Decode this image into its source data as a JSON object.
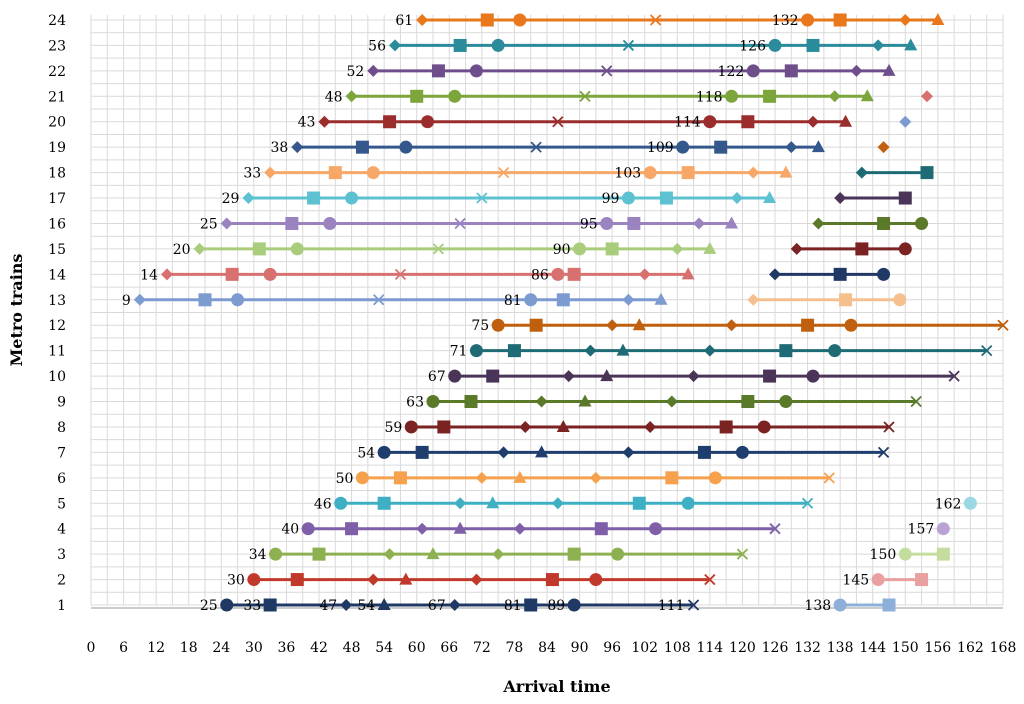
{
  "chart_data": {
    "type": "line",
    "xlabel": "Arrival time",
    "ylabel": "Metro trains",
    "xlim": [
      0,
      168
    ],
    "ylim": [
      0,
      24
    ],
    "x_ticks": [
      "0",
      "6",
      "12",
      "18",
      "24",
      "30",
      "36",
      "42",
      "48",
      "54",
      "60",
      "66",
      "72",
      "78",
      "84",
      "90",
      "96",
      "102",
      "108",
      "114",
      "120",
      "126",
      "132",
      "138",
      "144",
      "150",
      "156",
      "162",
      "168"
    ],
    "y_ticks": [
      "1",
      "2",
      "3",
      "4",
      "5",
      "6",
      "7",
      "8",
      "9",
      "10",
      "11",
      "12",
      "13",
      "14",
      "15",
      "16",
      "17",
      "18",
      "19",
      "20",
      "21",
      "22",
      "23",
      "24"
    ],
    "grid": true,
    "legend": "none",
    "series": [
      {
        "train": 1,
        "color": "#1f3864",
        "x": [
          25,
          33,
          47,
          54,
          67,
          81,
          89,
          111
        ],
        "markers": [
          "circle",
          "square",
          "diamond",
          "triangle",
          "diamond",
          "square",
          "circle",
          "x"
        ],
        "labels": [
          "25",
          "33",
          "47",
          "54",
          "67",
          "81",
          "89",
          "111"
        ]
      },
      {
        "train": 2,
        "color": "#c0392b",
        "x": [
          30,
          38,
          52,
          58,
          71,
          85,
          93,
          114
        ],
        "markers": [
          "circle",
          "square",
          "diamond",
          "triangle",
          "diamond",
          "square",
          "circle",
          "x"
        ],
        "labels": [
          "30",
          "",
          "",
          "",
          "",
          "",
          "",
          ""
        ]
      },
      {
        "train": 3,
        "color": "#8db050",
        "x": [
          34,
          42,
          55,
          63,
          75,
          89,
          97,
          120
        ],
        "markers": [
          "circle",
          "square",
          "diamond",
          "triangle",
          "diamond",
          "square",
          "circle",
          "x"
        ],
        "labels": [
          "34",
          "",
          "",
          "",
          "",
          "",
          "",
          ""
        ]
      },
      {
        "train": 4,
        "color": "#7f5fa8",
        "x": [
          40,
          48,
          61,
          68,
          79,
          94,
          104,
          126
        ],
        "markers": [
          "circle",
          "square",
          "diamond",
          "triangle",
          "diamond",
          "square",
          "circle",
          "x"
        ],
        "labels": [
          "40",
          "",
          "",
          "",
          "",
          "",
          "",
          ""
        ]
      },
      {
        "train": 5,
        "color": "#3fb0c4",
        "x": [
          46,
          54,
          68,
          74,
          86,
          101,
          110,
          132
        ],
        "markers": [
          "circle",
          "square",
          "diamond",
          "triangle",
          "diamond",
          "square",
          "circle",
          "x"
        ],
        "labels": [
          "46",
          "",
          "",
          "",
          "",
          "",
          "",
          ""
        ]
      },
      {
        "train": 6,
        "color": "#f5a14e",
        "x": [
          50,
          57,
          72,
          79,
          93,
          107,
          115,
          136
        ],
        "markers": [
          "circle",
          "square",
          "diamond",
          "triangle",
          "diamond",
          "square",
          "circle",
          "x"
        ],
        "labels": [
          "50",
          "",
          "",
          "",
          "",
          "",
          "",
          ""
        ]
      },
      {
        "train": 7,
        "color": "#1f3e6e",
        "x": [
          54,
          61,
          76,
          83,
          99,
          113,
          120,
          146
        ],
        "markers": [
          "circle",
          "square",
          "diamond",
          "triangle",
          "diamond",
          "square",
          "circle",
          "x"
        ],
        "labels": [
          "54",
          "",
          "",
          "",
          "",
          "",
          "",
          ""
        ]
      },
      {
        "train": 8,
        "color": "#7b2222",
        "x": [
          59,
          65,
          80,
          87,
          103,
          117,
          124,
          147
        ],
        "markers": [
          "circle",
          "square",
          "diamond",
          "triangle",
          "diamond",
          "square",
          "circle",
          "x"
        ],
        "labels": [
          "59",
          "",
          "",
          "",
          "",
          "",
          "",
          ""
        ]
      },
      {
        "train": 9,
        "color": "#5a7a2a",
        "x": [
          63,
          70,
          83,
          91,
          107,
          121,
          128,
          152
        ],
        "markers": [
          "circle",
          "square",
          "diamond",
          "triangle",
          "diamond",
          "square",
          "circle",
          "x"
        ],
        "labels": [
          "63",
          "",
          "",
          "",
          "",
          "",
          "",
          ""
        ]
      },
      {
        "train": 10,
        "color": "#4a3559",
        "x": [
          67,
          74,
          88,
          95,
          111,
          125,
          133,
          159
        ],
        "markers": [
          "circle",
          "square",
          "diamond",
          "triangle",
          "diamond",
          "square",
          "circle",
          "x"
        ],
        "labels": [
          "67",
          "",
          "",
          "",
          "",
          "",
          "",
          ""
        ]
      },
      {
        "train": 11,
        "color": "#1e6b75",
        "x": [
          71,
          78,
          92,
          98,
          114,
          128,
          137,
          165
        ],
        "markers": [
          "circle",
          "square",
          "diamond",
          "triangle",
          "diamond",
          "square",
          "circle",
          "x"
        ],
        "labels": [
          "71",
          "",
          "",
          "",
          "",
          "",
          "",
          ""
        ]
      },
      {
        "train": 12,
        "color": "#c0600f",
        "x": [
          75,
          82,
          96,
          101,
          118,
          132,
          140,
          168
        ],
        "markers": [
          "circle",
          "square",
          "diamond",
          "triangle",
          "diamond",
          "square",
          "circle",
          "x"
        ],
        "labels": [
          "75",
          "",
          "",
          "",
          "",
          "",
          "",
          ""
        ]
      },
      {
        "train": 13,
        "color": "#7c9bd1",
        "x": [
          9,
          21,
          27,
          53,
          81,
          87,
          99,
          105
        ],
        "markers": [
          "diamond",
          "square",
          "circle",
          "x",
          "circle",
          "square",
          "diamond",
          "triangle"
        ],
        "labels": [
          "9",
          "",
          "",
          "",
          "81",
          "",
          "",
          ""
        ]
      },
      {
        "train": 13,
        "color": "#f5c08e",
        "x": [
          122,
          139,
          149
        ],
        "markers": [
          "diamond",
          "square",
          "circle"
        ],
        "labels": [
          "",
          "",
          ""
        ]
      },
      {
        "train": 14,
        "color": "#d97070",
        "x": [
          14,
          26,
          33,
          57,
          86,
          89,
          102,
          110
        ],
        "markers": [
          "diamond",
          "square",
          "circle",
          "x",
          "circle",
          "square",
          "diamond",
          "triangle"
        ],
        "labels": [
          "14",
          "",
          "",
          "",
          "86",
          "",
          "",
          ""
        ]
      },
      {
        "train": 14,
        "color": "#1f3864",
        "x": [
          126,
          138,
          146
        ],
        "markers": [
          "diamond",
          "square",
          "circle"
        ],
        "labels": [
          "",
          "",
          ""
        ]
      },
      {
        "train": 15,
        "color": "#a9cd7d",
        "x": [
          20,
          31,
          38,
          64,
          90,
          96,
          108,
          114
        ],
        "markers": [
          "diamond",
          "square",
          "circle",
          "x",
          "circle",
          "square",
          "diamond",
          "triangle"
        ],
        "labels": [
          "20",
          "",
          "",
          "",
          "90",
          "",
          "",
          ""
        ]
      },
      {
        "train": 15,
        "color": "#7b2222",
        "x": [
          130,
          142,
          150
        ],
        "markers": [
          "diamond",
          "square",
          "circle"
        ],
        "labels": [
          "",
          "",
          ""
        ]
      },
      {
        "train": 16,
        "color": "#9b83c0",
        "x": [
          25,
          37,
          44,
          68,
          95,
          100,
          112,
          118
        ],
        "markers": [
          "diamond",
          "square",
          "circle",
          "x",
          "circle",
          "square",
          "diamond",
          "triangle"
        ],
        "labels": [
          "25",
          "",
          "",
          "",
          "95",
          "",
          "",
          ""
        ]
      },
      {
        "train": 16,
        "color": "#5a7a2a",
        "x": [
          134,
          146,
          153
        ],
        "markers": [
          "diamond",
          "square",
          "circle"
        ],
        "labels": [
          "",
          "",
          ""
        ]
      },
      {
        "train": 17,
        "color": "#5cc1d1",
        "x": [
          29,
          41,
          48,
          72,
          99,
          106,
          119,
          125
        ],
        "markers": [
          "diamond",
          "square",
          "circle",
          "x",
          "circle",
          "square",
          "diamond",
          "triangle"
        ],
        "labels": [
          "29",
          "",
          "",
          "",
          "99",
          "",
          "",
          ""
        ]
      },
      {
        "train": 17,
        "color": "#4a3559",
        "x": [
          138,
          150
        ],
        "markers": [
          "diamond",
          "square"
        ],
        "labels": [
          "",
          ""
        ]
      },
      {
        "train": 18,
        "color": "#f7a868",
        "x": [
          33,
          45,
          52,
          76,
          103,
          110,
          122,
          128
        ],
        "markers": [
          "diamond",
          "square",
          "circle",
          "x",
          "circle",
          "square",
          "diamond",
          "triangle"
        ],
        "labels": [
          "33",
          "",
          "",
          "",
          "103",
          "",
          "",
          ""
        ]
      },
      {
        "train": 18,
        "color": "#1e6b75",
        "x": [
          142,
          154
        ],
        "markers": [
          "diamond",
          "square"
        ],
        "labels": [
          "",
          ""
        ]
      },
      {
        "train": 19,
        "color": "#34578c",
        "x": [
          38,
          50,
          58,
          82,
          109,
          116,
          129,
          134
        ],
        "markers": [
          "diamond",
          "square",
          "circle",
          "x",
          "circle",
          "square",
          "diamond",
          "triangle"
        ],
        "labels": [
          "38",
          "",
          "",
          "",
          "109",
          "",
          "",
          ""
        ]
      },
      {
        "train": 19,
        "color": "#c0600f",
        "x": [
          146
        ],
        "markers": [
          "diamond"
        ],
        "labels": [
          ""
        ]
      },
      {
        "train": 20,
        "color": "#9b2d2d",
        "x": [
          43,
          55,
          62,
          86,
          114,
          121,
          133,
          139
        ],
        "markers": [
          "diamond",
          "square",
          "circle",
          "x",
          "circle",
          "square",
          "diamond",
          "triangle"
        ],
        "labels": [
          "43",
          "",
          "",
          "",
          "114",
          "",
          "",
          ""
        ]
      },
      {
        "train": 20,
        "color": "#7c9bd1",
        "x": [
          150
        ],
        "markers": [
          "diamond"
        ],
        "labels": [
          ""
        ]
      },
      {
        "train": 21,
        "color": "#7ca63c",
        "x": [
          48,
          60,
          67,
          91,
          118,
          125,
          137,
          143
        ],
        "markers": [
          "diamond",
          "square",
          "circle",
          "x",
          "circle",
          "square",
          "diamond",
          "triangle"
        ],
        "labels": [
          "48",
          "",
          "",
          "",
          "118",
          "",
          "",
          ""
        ]
      },
      {
        "train": 21,
        "color": "#d97070",
        "x": [
          154
        ],
        "markers": [
          "diamond"
        ],
        "labels": [
          ""
        ]
      },
      {
        "train": 22,
        "color": "#6e4f8c",
        "x": [
          52,
          64,
          71,
          95,
          122,
          129,
          141,
          147
        ],
        "markers": [
          "diamond",
          "square",
          "circle",
          "x",
          "circle",
          "square",
          "diamond",
          "triangle"
        ],
        "labels": [
          "52",
          "",
          "",
          "",
          "122",
          "",
          "",
          ""
        ]
      },
      {
        "train": 23,
        "color": "#2a8b9b",
        "x": [
          56,
          68,
          75,
          99,
          126,
          133,
          145,
          151
        ],
        "markers": [
          "diamond",
          "square",
          "circle",
          "x",
          "circle",
          "square",
          "diamond",
          "triangle"
        ],
        "labels": [
          "56",
          "",
          "",
          "",
          "126",
          "",
          "",
          ""
        ]
      },
      {
        "train": 24,
        "color": "#e9781c",
        "x": [
          61,
          73,
          79,
          104,
          132,
          138,
          150,
          156
        ],
        "markers": [
          "diamond",
          "square",
          "circle",
          "x",
          "circle",
          "square",
          "diamond",
          "triangle"
        ],
        "labels": [
          "61",
          "",
          "",
          "",
          "132",
          "",
          "",
          ""
        ]
      },
      {
        "train": 1,
        "color": "#8eb0d8",
        "x": [
          138,
          147
        ],
        "markers": [
          "circle",
          "square"
        ],
        "labels": [
          "138",
          ""
        ]
      },
      {
        "train": 2,
        "color": "#e8a0a0",
        "x": [
          145,
          153
        ],
        "markers": [
          "circle",
          "square"
        ],
        "labels": [
          "145",
          ""
        ]
      },
      {
        "train": 3,
        "color": "#c4dd9e",
        "x": [
          150,
          157
        ],
        "markers": [
          "circle",
          "square"
        ],
        "labels": [
          "150",
          ""
        ]
      },
      {
        "train": 4,
        "color": "#b8a3d4",
        "x": [
          157
        ],
        "markers": [
          "circle"
        ],
        "labels": [
          "157"
        ]
      },
      {
        "train": 5,
        "color": "#9bd8e3",
        "x": [
          162
        ],
        "markers": [
          "circle"
        ],
        "labels": [
          "162"
        ]
      }
    ]
  }
}
